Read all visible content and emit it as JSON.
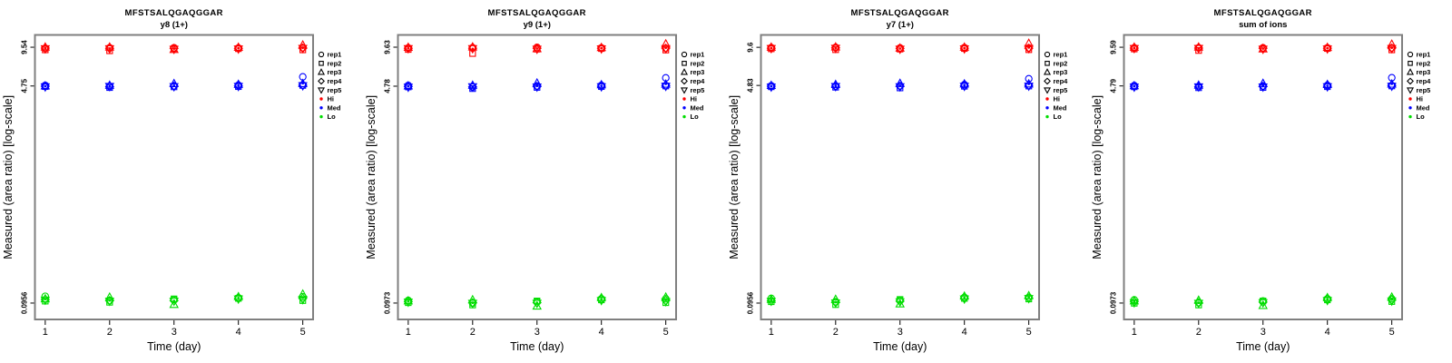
{
  "figure": {
    "peptide": "MFSTSALQGAQGGAR",
    "xlabel": "Time (day)",
    "ylabel": "Measured (area ratio) [log-scale]",
    "box_color": "#7f7f7f",
    "text_color": "#000000",
    "background": "#ffffff",
    "legend": {
      "reps": [
        {
          "label": "rep1",
          "symbol": "circle"
        },
        {
          "label": "rep2",
          "symbol": "square"
        },
        {
          "label": "rep3",
          "symbol": "triangle-up"
        },
        {
          "label": "rep4",
          "symbol": "diamond"
        },
        {
          "label": "rep5",
          "symbol": "triangle-down"
        }
      ],
      "levels": [
        {
          "label": "Hi",
          "color": "#FF0000"
        },
        {
          "label": "Med",
          "color": "#0000FF"
        },
        {
          "label": "Lo",
          "color": "#00DD00"
        }
      ]
    }
  },
  "chart_data": [
    {
      "type": "scatter",
      "id": "y8-1plus",
      "title": "MFSTSALQGAQGGAR",
      "subtitle": "y8 (1+)",
      "xlabel": "Time (day)",
      "ylabel": "Measured (area ratio) [log-scale]",
      "yscale": "log",
      "x": [
        1,
        2,
        3,
        4,
        5
      ],
      "ylim": [
        0.0712,
        11.9
      ],
      "yticks": [
        {
          "label": "9.54",
          "value": 9.54
        },
        {
          "label": "4.75",
          "value": 4.75
        },
        {
          "label": "0.0956",
          "value": 0.0956
        }
      ],
      "series": [
        {
          "name": "Hi",
          "color": "#FF0000",
          "reps": [
            {
              "name": "rep1",
              "symbol": "circle",
              "values": [
                9.35,
                9.45,
                9.45,
                9.4,
                9.45
              ]
            },
            {
              "name": "rep2",
              "symbol": "square",
              "values": [
                9.1,
                8.95,
                9.3,
                9.3,
                9.1
              ]
            },
            {
              "name": "rep3",
              "symbol": "triangle-up",
              "values": [
                9.55,
                9.55,
                9.15,
                9.5,
                9.9
              ]
            },
            {
              "name": "rep4",
              "symbol": "diamond",
              "values": [
                9.4,
                9.35,
                9.35,
                9.35,
                9.4
              ]
            },
            {
              "name": "rep5",
              "symbol": "triangle-down",
              "values": [
                9.3,
                9.3,
                9.2,
                9.25,
                9.35
              ]
            }
          ]
        },
        {
          "name": "Med",
          "color": "#0000FF",
          "reps": [
            {
              "name": "rep1",
              "symbol": "circle",
              "values": [
                4.8,
                4.72,
                4.75,
                4.82,
                5.6
              ]
            },
            {
              "name": "rep2",
              "symbol": "square",
              "values": [
                4.7,
                4.62,
                4.68,
                4.7,
                4.8
              ]
            },
            {
              "name": "rep3",
              "symbol": "triangle-up",
              "values": [
                4.75,
                4.8,
                4.95,
                4.88,
                4.95
              ]
            },
            {
              "name": "rep4",
              "symbol": "diamond",
              "values": [
                4.73,
                4.7,
                4.74,
                4.75,
                4.82
              ]
            },
            {
              "name": "rep5",
              "symbol": "triangle-down",
              "values": [
                4.68,
                4.72,
                4.7,
                4.72,
                4.78
              ]
            }
          ]
        },
        {
          "name": "Lo",
          "color": "#00DD00",
          "reps": [
            {
              "name": "rep1",
              "symbol": "circle",
              "values": [
                0.108,
                0.1,
                0.102,
                0.105,
                0.107
              ]
            },
            {
              "name": "rep2",
              "symbol": "square",
              "values": [
                0.099,
                0.097,
                0.103,
                0.104,
                0.1
              ]
            },
            {
              "name": "rep3",
              "symbol": "triangle-up",
              "values": [
                0.103,
                0.106,
                0.093,
                0.107,
                0.112
              ]
            },
            {
              "name": "rep4",
              "symbol": "diamond",
              "values": [
                0.102,
                0.1,
                0.1,
                0.104,
                0.104
              ]
            },
            {
              "name": "rep5",
              "symbol": "triangle-down",
              "values": [
                0.101,
                0.099,
                0.099,
                0.103,
                0.102
              ]
            }
          ]
        }
      ]
    },
    {
      "type": "scatter",
      "id": "y9-1plus",
      "title": "MFSTSALQGAQGGAR",
      "subtitle": "y9 (1+)",
      "xlabel": "Time (day)",
      "ylabel": "Measured (area ratio) [log-scale]",
      "yscale": "log",
      "x": [
        1,
        2,
        3,
        4,
        5
      ],
      "ylim": [
        0.0725,
        12.0
      ],
      "yticks": [
        {
          "label": "9.63",
          "value": 9.63
        },
        {
          "label": "4.78",
          "value": 4.78
        },
        {
          "label": "0.0973",
          "value": 0.0973
        }
      ],
      "series": [
        {
          "name": "Hi",
          "color": "#FF0000",
          "reps": [
            {
              "name": "rep1",
              "symbol": "circle",
              "values": [
                9.5,
                9.55,
                9.6,
                9.5,
                9.45
              ]
            },
            {
              "name": "rep2",
              "symbol": "square",
              "values": [
                9.25,
                8.6,
                9.3,
                9.4,
                9.15
              ]
            },
            {
              "name": "rep3",
              "symbol": "triangle-up",
              "values": [
                9.6,
                9.65,
                9.35,
                9.55,
                10.2
              ]
            },
            {
              "name": "rep4",
              "symbol": "diamond",
              "values": [
                9.45,
                9.45,
                9.45,
                9.45,
                9.45
              ]
            },
            {
              "name": "rep5",
              "symbol": "triangle-down",
              "values": [
                9.4,
                9.4,
                9.3,
                9.35,
                9.4
              ]
            }
          ]
        },
        {
          "name": "Med",
          "color": "#0000FF",
          "reps": [
            {
              "name": "rep1",
              "symbol": "circle",
              "values": [
                4.85,
                4.7,
                4.8,
                4.85,
                5.55
              ]
            },
            {
              "name": "rep2",
              "symbol": "square",
              "values": [
                4.72,
                4.58,
                4.68,
                4.75,
                4.8
              ]
            },
            {
              "name": "rep3",
              "symbol": "triangle-up",
              "values": [
                4.8,
                4.85,
                5.05,
                4.9,
                4.95
              ]
            },
            {
              "name": "rep4",
              "symbol": "diamond",
              "values": [
                4.76,
                4.72,
                4.76,
                4.78,
                4.84
              ]
            },
            {
              "name": "rep5",
              "symbol": "triangle-down",
              "values": [
                4.7,
                4.74,
                4.72,
                4.74,
                4.78
              ]
            }
          ]
        },
        {
          "name": "Lo",
          "color": "#00DD00",
          "reps": [
            {
              "name": "rep1",
              "symbol": "circle",
              "values": [
                0.102,
                0.097,
                0.1,
                0.105,
                0.105
              ]
            },
            {
              "name": "rep2",
              "symbol": "square",
              "values": [
                0.098,
                0.094,
                0.101,
                0.103,
                0.098
              ]
            },
            {
              "name": "rep3",
              "symbol": "triangle-up",
              "values": [
                0.101,
                0.103,
                0.092,
                0.107,
                0.108
              ]
            },
            {
              "name": "rep4",
              "symbol": "diamond",
              "values": [
                0.1,
                0.098,
                0.098,
                0.104,
                0.102
              ]
            },
            {
              "name": "rep5",
              "symbol": "triangle-down",
              "values": [
                0.099,
                0.097,
                0.097,
                0.102,
                0.1
              ]
            }
          ]
        }
      ]
    },
    {
      "type": "scatter",
      "id": "y7-1plus",
      "title": "MFSTSALQGAQGGAR",
      "subtitle": "y7 (1+)",
      "xlabel": "Time (day)",
      "ylabel": "Measured (area ratio) [log-scale]",
      "yscale": "log",
      "x": [
        1,
        2,
        3,
        4,
        5
      ],
      "ylim": [
        0.0712,
        12.0
      ],
      "yticks": [
        {
          "label": "9.6",
          "value": 9.6
        },
        {
          "label": "4.83",
          "value": 4.83
        },
        {
          "label": "0.0956",
          "value": 0.0956
        }
      ],
      "series": [
        {
          "name": "Hi",
          "color": "#FF0000",
          "reps": [
            {
              "name": "rep1",
              "symbol": "circle",
              "values": [
                9.55,
                9.6,
                9.5,
                9.55,
                9.5
              ]
            },
            {
              "name": "rep2",
              "symbol": "square",
              "values": [
                9.35,
                9.2,
                9.3,
                9.4,
                9.2
              ]
            },
            {
              "name": "rep3",
              "symbol": "triangle-up",
              "values": [
                9.6,
                9.65,
                9.45,
                9.6,
                10.3
              ]
            },
            {
              "name": "rep4",
              "symbol": "diamond",
              "values": [
                9.45,
                9.5,
                9.4,
                9.45,
                9.45
              ]
            },
            {
              "name": "rep5",
              "symbol": "triangle-down",
              "values": [
                9.4,
                9.45,
                9.3,
                9.35,
                9.4
              ]
            }
          ]
        },
        {
          "name": "Med",
          "color": "#0000FF",
          "reps": [
            {
              "name": "rep1",
              "symbol": "circle",
              "values": [
                4.8,
                4.78,
                4.8,
                4.9,
                5.45
              ]
            },
            {
              "name": "rep2",
              "symbol": "square",
              "values": [
                4.72,
                4.68,
                4.62,
                4.76,
                4.78
              ]
            },
            {
              "name": "rep3",
              "symbol": "triangle-up",
              "values": [
                4.82,
                4.9,
                5.0,
                4.95,
                4.95
              ]
            },
            {
              "name": "rep4",
              "symbol": "diamond",
              "values": [
                4.76,
                4.76,
                4.76,
                4.8,
                4.84
              ]
            },
            {
              "name": "rep5",
              "symbol": "triangle-down",
              "values": [
                4.7,
                4.74,
                4.72,
                4.76,
                4.78
              ]
            }
          ]
        },
        {
          "name": "Lo",
          "color": "#00DD00",
          "reps": [
            {
              "name": "rep1",
              "symbol": "circle",
              "values": [
                0.104,
                0.098,
                0.101,
                0.106,
                0.106
              ]
            },
            {
              "name": "rep2",
              "symbol": "square",
              "values": [
                0.098,
                0.093,
                0.102,
                0.104,
                0.103
              ]
            },
            {
              "name": "rep3",
              "symbol": "triangle-up",
              "values": [
                0.102,
                0.102,
                0.094,
                0.108,
                0.109
              ]
            },
            {
              "name": "rep4",
              "symbol": "diamond",
              "values": [
                0.1,
                0.097,
                0.099,
                0.105,
                0.105
              ]
            },
            {
              "name": "rep5",
              "symbol": "triangle-down",
              "values": [
                0.099,
                0.096,
                0.098,
                0.103,
                0.104
              ]
            }
          ]
        }
      ]
    },
    {
      "type": "scatter",
      "id": "sum-of-ions",
      "title": "MFSTSALQGAQGGAR",
      "subtitle": "sum of ions",
      "xlabel": "Time (day)",
      "ylabel": "Measured (area ratio) [log-scale]",
      "yscale": "log",
      "x": [
        1,
        2,
        3,
        4,
        5
      ],
      "ylim": [
        0.0725,
        11.96
      ],
      "yticks": [
        {
          "label": "9.59",
          "value": 9.59
        },
        {
          "label": "4.79",
          "value": 4.79
        },
        {
          "label": "0.0973",
          "value": 0.0973
        }
      ],
      "series": [
        {
          "name": "Hi",
          "color": "#FF0000",
          "reps": [
            {
              "name": "rep1",
              "symbol": "circle",
              "values": [
                9.5,
                9.52,
                9.5,
                9.48,
                9.48
              ]
            },
            {
              "name": "rep2",
              "symbol": "square",
              "values": [
                9.3,
                9.05,
                9.32,
                9.38,
                9.15
              ]
            },
            {
              "name": "rep3",
              "symbol": "triangle-up",
              "values": [
                9.58,
                9.6,
                9.3,
                9.55,
                10.1
              ]
            },
            {
              "name": "rep4",
              "symbol": "diamond",
              "values": [
                9.45,
                9.45,
                9.42,
                9.42,
                9.44
              ]
            },
            {
              "name": "rep5",
              "symbol": "triangle-down",
              "values": [
                9.38,
                9.4,
                9.28,
                9.32,
                9.38
              ]
            }
          ]
        },
        {
          "name": "Med",
          "color": "#0000FF",
          "reps": [
            {
              "name": "rep1",
              "symbol": "circle",
              "values": [
                4.82,
                4.74,
                4.78,
                4.84,
                5.55
              ]
            },
            {
              "name": "rep2",
              "symbol": "square",
              "values": [
                4.72,
                4.64,
                4.66,
                4.73,
                4.79
              ]
            },
            {
              "name": "rep3",
              "symbol": "triangle-up",
              "values": [
                4.8,
                4.84,
                5.0,
                4.9,
                4.94
              ]
            },
            {
              "name": "rep4",
              "symbol": "diamond",
              "values": [
                4.76,
                4.72,
                4.75,
                4.77,
                4.83
              ]
            },
            {
              "name": "rep5",
              "symbol": "triangle-down",
              "values": [
                4.7,
                4.72,
                4.71,
                4.73,
                4.77
              ]
            }
          ]
        },
        {
          "name": "Lo",
          "color": "#00DD00",
          "reps": [
            {
              "name": "rep1",
              "symbol": "circle",
              "values": [
                0.103,
                0.098,
                0.101,
                0.105,
                0.105
              ]
            },
            {
              "name": "rep2",
              "symbol": "square",
              "values": [
                0.097,
                0.094,
                0.101,
                0.103,
                0.1
              ]
            },
            {
              "name": "rep3",
              "symbol": "triangle-up",
              "values": [
                0.101,
                0.102,
                0.093,
                0.107,
                0.108
              ]
            },
            {
              "name": "rep4",
              "symbol": "diamond",
              "values": [
                0.1,
                0.098,
                0.099,
                0.104,
                0.103
              ]
            },
            {
              "name": "rep5",
              "symbol": "triangle-down",
              "values": [
                0.098,
                0.097,
                0.098,
                0.102,
                0.101
              ]
            }
          ]
        }
      ]
    }
  ]
}
